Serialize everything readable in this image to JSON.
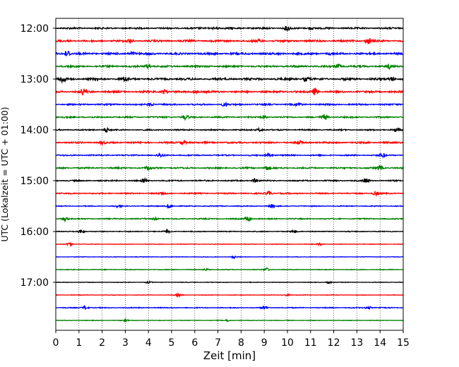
{
  "chart_data": {
    "type": "line",
    "title": "",
    "xlabel": "Zeit  [min]",
    "ylabel": "UTC (Lokalzeit = UTC + 01:00)",
    "xlim": [
      0,
      15
    ],
    "x_ticks": [
      "0",
      "1",
      "2",
      "3",
      "4",
      "5",
      "6",
      "7",
      "8",
      "9",
      "10",
      "11",
      "12",
      "13",
      "14",
      "15"
    ],
    "y_ticks": [
      {
        "label": "12:00",
        "trace_index": 0
      },
      {
        "label": "13:00",
        "trace_index": 4
      },
      {
        "label": "14:00",
        "trace_index": 8
      },
      {
        "label": "15:00",
        "trace_index": 12
      },
      {
        "label": "16:00",
        "trace_index": 16
      },
      {
        "label": "17:00",
        "trace_index": 20
      }
    ],
    "vertical_grid": true,
    "trace_interval_min": 15,
    "trace_colors": [
      "#000000",
      "#ff0000",
      "#0000ff",
      "#008000"
    ],
    "traces": [
      {
        "start": "12:00",
        "noise": 0.9,
        "events": [
          [
            10.0,
            3.2
          ],
          [
            6.9,
            2.0
          ],
          [
            11.0,
            1.8
          ]
        ]
      },
      {
        "start": "12:15",
        "noise": 1.0,
        "events": [
          [
            13.5,
            4.0
          ],
          [
            3.2,
            2.0
          ],
          [
            8.8,
            1.5
          ]
        ]
      },
      {
        "start": "12:30",
        "noise": 1.1,
        "events": [
          [
            0.5,
            4.2
          ],
          [
            3.3,
            2.0
          ],
          [
            11.9,
            1.6
          ]
        ]
      },
      {
        "start": "12:45",
        "noise": 1.0,
        "events": [
          [
            4.0,
            3.0
          ],
          [
            12.2,
            2.8
          ],
          [
            14.4,
            2.6
          ]
        ]
      },
      {
        "start": "13:00",
        "noise": 1.1,
        "events": [
          [
            0.3,
            4.5
          ],
          [
            3.0,
            3.0
          ],
          [
            10.8,
            2.8
          ],
          [
            14.5,
            2.5
          ]
        ]
      },
      {
        "start": "13:15",
        "noise": 1.0,
        "events": [
          [
            1.2,
            4.0
          ],
          [
            4.7,
            3.0
          ],
          [
            11.2,
            4.5
          ],
          [
            6.0,
            2.0
          ]
        ]
      },
      {
        "start": "13:30",
        "noise": 0.8,
        "events": [
          [
            4.1,
            2.5
          ],
          [
            7.3,
            2.4
          ],
          [
            10.5,
            2.0
          ]
        ]
      },
      {
        "start": "13:45",
        "noise": 0.8,
        "events": [
          [
            5.6,
            3.0
          ],
          [
            11.6,
            3.2
          ],
          [
            9.0,
            2.0
          ]
        ]
      },
      {
        "start": "14:00",
        "noise": 0.7,
        "events": [
          [
            2.2,
            3.2
          ],
          [
            14.7,
            3.0
          ],
          [
            8.8,
            2.0
          ]
        ]
      },
      {
        "start": "14:15",
        "noise": 0.9,
        "events": [
          [
            5.5,
            3.2
          ],
          [
            2.0,
            1.8
          ],
          [
            10.5,
            2.5
          ]
        ]
      },
      {
        "start": "14:30",
        "noise": 0.7,
        "events": [
          [
            4.5,
            2.5
          ],
          [
            9.2,
            2.8
          ],
          [
            14.1,
            3.0
          ]
        ]
      },
      {
        "start": "14:45",
        "noise": 0.8,
        "events": [
          [
            4.0,
            2.6
          ],
          [
            9.1,
            2.8
          ],
          [
            14.0,
            3.0
          ]
        ]
      },
      {
        "start": "15:00",
        "noise": 0.7,
        "events": [
          [
            3.8,
            2.8
          ],
          [
            8.6,
            2.6
          ],
          [
            13.4,
            3.0
          ]
        ]
      },
      {
        "start": "15:15",
        "noise": 0.7,
        "events": [
          [
            9.2,
            3.5
          ],
          [
            13.8,
            2.5
          ],
          [
            4.6,
            2.0
          ]
        ]
      },
      {
        "start": "15:30",
        "noise": 0.5,
        "events": [
          [
            4.9,
            3.2
          ],
          [
            9.3,
            2.4
          ],
          [
            2.7,
            1.6
          ]
        ]
      },
      {
        "start": "15:45",
        "noise": 0.6,
        "events": [
          [
            0.4,
            3.2
          ],
          [
            8.3,
            4.2
          ],
          [
            4.3,
            1.6
          ]
        ]
      },
      {
        "start": "16:00",
        "noise": 0.5,
        "events": [
          [
            1.1,
            2.8
          ],
          [
            4.8,
            2.0
          ],
          [
            10.3,
            1.6
          ]
        ]
      },
      {
        "start": "16:15",
        "noise": 0.3,
        "events": [
          [
            0.6,
            2.2
          ],
          [
            11.4,
            1.4
          ]
        ]
      },
      {
        "start": "16:30",
        "noise": 0.3,
        "events": [
          [
            7.7,
            1.4
          ]
        ]
      },
      {
        "start": "16:45",
        "noise": 0.4,
        "events": [
          [
            9.1,
            2.0
          ],
          [
            6.5,
            1.2
          ]
        ]
      },
      {
        "start": "17:00",
        "noise": 0.3,
        "events": [
          [
            11.8,
            1.4
          ],
          [
            4.0,
            1.2
          ]
        ]
      },
      {
        "start": "17:15",
        "noise": 0.3,
        "events": [
          [
            5.3,
            1.6
          ],
          [
            10.0,
            1.2
          ]
        ]
      },
      {
        "start": "17:30",
        "noise": 0.5,
        "events": [
          [
            1.3,
            2.8
          ],
          [
            9.0,
            1.8
          ],
          [
            13.5,
            1.8
          ]
        ]
      },
      {
        "start": "17:45",
        "noise": 0.3,
        "events": [
          [
            3.0,
            1.6
          ],
          [
            7.4,
            1.2
          ]
        ]
      }
    ]
  }
}
